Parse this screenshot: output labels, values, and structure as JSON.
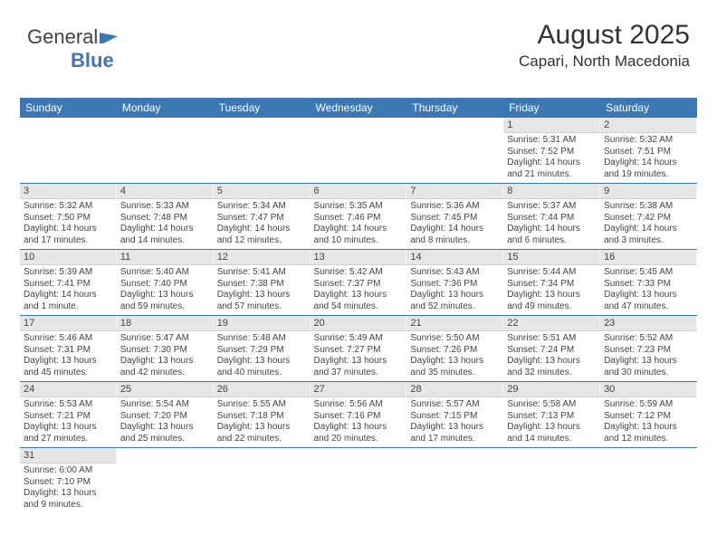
{
  "logo": {
    "text_general": "General",
    "text_blue": "Blue"
  },
  "header": {
    "title": "August 2025",
    "location": "Capari, North Macedonia"
  },
  "colors": {
    "header_bg": "#3c78b4",
    "header_fg": "#ffffff",
    "daynum_bg": "#e6e6e6",
    "row_divider": "#3c78b4",
    "text": "#444444"
  },
  "dayNames": [
    "Sunday",
    "Monday",
    "Tuesday",
    "Wednesday",
    "Thursday",
    "Friday",
    "Saturday"
  ],
  "weeks": [
    [
      null,
      null,
      null,
      null,
      null,
      {
        "n": "1",
        "sr": "5:31 AM",
        "ss": "7:52 PM",
        "dl": "14 hours and 21 minutes."
      },
      {
        "n": "2",
        "sr": "5:32 AM",
        "ss": "7:51 PM",
        "dl": "14 hours and 19 minutes."
      }
    ],
    [
      {
        "n": "3",
        "sr": "5:32 AM",
        "ss": "7:50 PM",
        "dl": "14 hours and 17 minutes."
      },
      {
        "n": "4",
        "sr": "5:33 AM",
        "ss": "7:48 PM",
        "dl": "14 hours and 14 minutes."
      },
      {
        "n": "5",
        "sr": "5:34 AM",
        "ss": "7:47 PM",
        "dl": "14 hours and 12 minutes."
      },
      {
        "n": "6",
        "sr": "5:35 AM",
        "ss": "7:46 PM",
        "dl": "14 hours and 10 minutes."
      },
      {
        "n": "7",
        "sr": "5:36 AM",
        "ss": "7:45 PM",
        "dl": "14 hours and 8 minutes."
      },
      {
        "n": "8",
        "sr": "5:37 AM",
        "ss": "7:44 PM",
        "dl": "14 hours and 6 minutes."
      },
      {
        "n": "9",
        "sr": "5:38 AM",
        "ss": "7:42 PM",
        "dl": "14 hours and 3 minutes."
      }
    ],
    [
      {
        "n": "10",
        "sr": "5:39 AM",
        "ss": "7:41 PM",
        "dl": "14 hours and 1 minute."
      },
      {
        "n": "11",
        "sr": "5:40 AM",
        "ss": "7:40 PM",
        "dl": "13 hours and 59 minutes."
      },
      {
        "n": "12",
        "sr": "5:41 AM",
        "ss": "7:38 PM",
        "dl": "13 hours and 57 minutes."
      },
      {
        "n": "13",
        "sr": "5:42 AM",
        "ss": "7:37 PM",
        "dl": "13 hours and 54 minutes."
      },
      {
        "n": "14",
        "sr": "5:43 AM",
        "ss": "7:36 PM",
        "dl": "13 hours and 52 minutes."
      },
      {
        "n": "15",
        "sr": "5:44 AM",
        "ss": "7:34 PM",
        "dl": "13 hours and 49 minutes."
      },
      {
        "n": "16",
        "sr": "5:45 AM",
        "ss": "7:33 PM",
        "dl": "13 hours and 47 minutes."
      }
    ],
    [
      {
        "n": "17",
        "sr": "5:46 AM",
        "ss": "7:31 PM",
        "dl": "13 hours and 45 minutes."
      },
      {
        "n": "18",
        "sr": "5:47 AM",
        "ss": "7:30 PM",
        "dl": "13 hours and 42 minutes."
      },
      {
        "n": "19",
        "sr": "5:48 AM",
        "ss": "7:29 PM",
        "dl": "13 hours and 40 minutes."
      },
      {
        "n": "20",
        "sr": "5:49 AM",
        "ss": "7:27 PM",
        "dl": "13 hours and 37 minutes."
      },
      {
        "n": "21",
        "sr": "5:50 AM",
        "ss": "7:26 PM",
        "dl": "13 hours and 35 minutes."
      },
      {
        "n": "22",
        "sr": "5:51 AM",
        "ss": "7:24 PM",
        "dl": "13 hours and 32 minutes."
      },
      {
        "n": "23",
        "sr": "5:52 AM",
        "ss": "7:23 PM",
        "dl": "13 hours and 30 minutes."
      }
    ],
    [
      {
        "n": "24",
        "sr": "5:53 AM",
        "ss": "7:21 PM",
        "dl": "13 hours and 27 minutes."
      },
      {
        "n": "25",
        "sr": "5:54 AM",
        "ss": "7:20 PM",
        "dl": "13 hours and 25 minutes."
      },
      {
        "n": "26",
        "sr": "5:55 AM",
        "ss": "7:18 PM",
        "dl": "13 hours and 22 minutes."
      },
      {
        "n": "27",
        "sr": "5:56 AM",
        "ss": "7:16 PM",
        "dl": "13 hours and 20 minutes."
      },
      {
        "n": "28",
        "sr": "5:57 AM",
        "ss": "7:15 PM",
        "dl": "13 hours and 17 minutes."
      },
      {
        "n": "29",
        "sr": "5:58 AM",
        "ss": "7:13 PM",
        "dl": "13 hours and 14 minutes."
      },
      {
        "n": "30",
        "sr": "5:59 AM",
        "ss": "7:12 PM",
        "dl": "13 hours and 12 minutes."
      }
    ],
    [
      {
        "n": "31",
        "sr": "6:00 AM",
        "ss": "7:10 PM",
        "dl": "13 hours and 9 minutes."
      },
      null,
      null,
      null,
      null,
      null,
      null
    ]
  ],
  "labels": {
    "sunrise": "Sunrise: ",
    "sunset": "Sunset: ",
    "daylight": "Daylight: "
  }
}
